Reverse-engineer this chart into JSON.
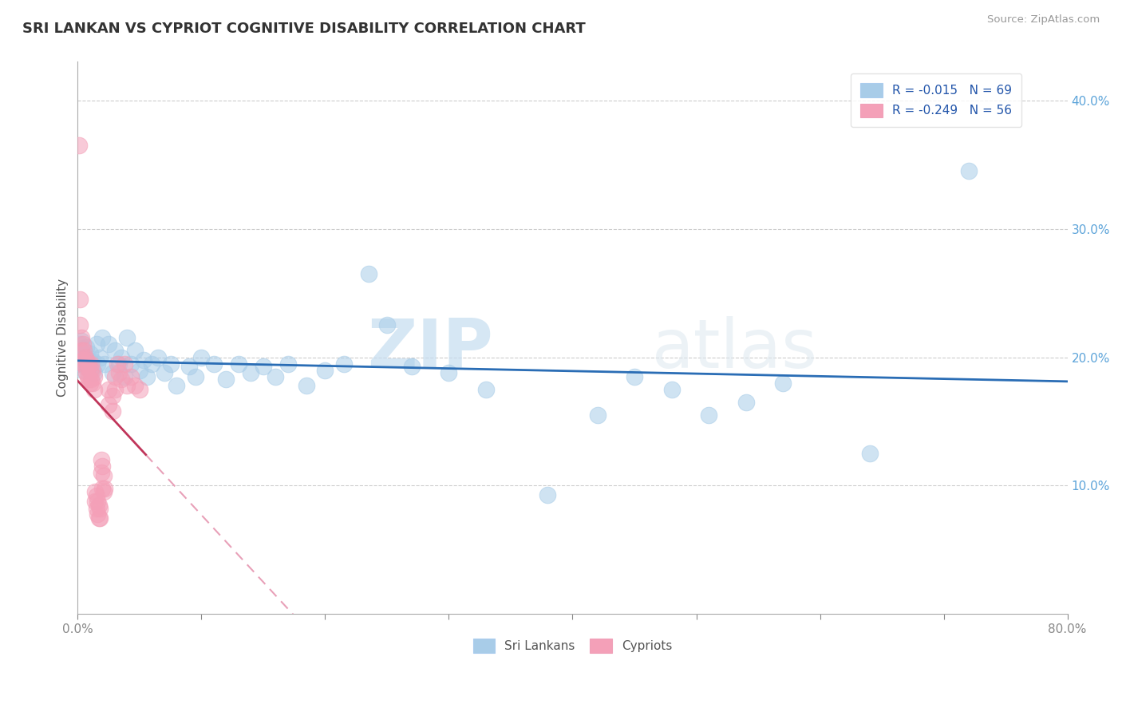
{
  "title": "SRI LANKAN VS CYPRIOT COGNITIVE DISABILITY CORRELATION CHART",
  "source": "Source: ZipAtlas.com",
  "ylabel": "Cognitive Disability",
  "legend_sri": "R = -0.015   N = 69",
  "legend_cyp": "R = -0.249   N = 56",
  "sri_color": "#a8cce8",
  "cyp_color": "#f4a0b8",
  "sri_line_color": "#2a6db5",
  "cyp_line_solid_color": "#c0355a",
  "cyp_line_dash_color": "#e8a0b8",
  "watermark_zip": "ZIP",
  "watermark_atlas": "atlas",
  "sri_points": [
    [
      0.0015,
      0.21
    ],
    [
      0.0018,
      0.205
    ],
    [
      0.0022,
      0.2
    ],
    [
      0.0025,
      0.198
    ],
    [
      0.0028,
      0.207
    ],
    [
      0.003,
      0.195
    ],
    [
      0.003,
      0.213
    ],
    [
      0.004,
      0.202
    ],
    [
      0.004,
      0.19
    ],
    [
      0.005,
      0.205
    ],
    [
      0.005,
      0.195
    ],
    [
      0.006,
      0.2
    ],
    [
      0.007,
      0.195
    ],
    [
      0.007,
      0.208
    ],
    [
      0.008,
      0.192
    ],
    [
      0.009,
      0.198
    ],
    [
      0.01,
      0.203
    ],
    [
      0.011,
      0.19
    ],
    [
      0.012,
      0.197
    ],
    [
      0.013,
      0.188
    ],
    [
      0.015,
      0.21
    ],
    [
      0.016,
      0.195
    ],
    [
      0.018,
      0.2
    ],
    [
      0.02,
      0.215
    ],
    [
      0.022,
      0.195
    ],
    [
      0.025,
      0.21
    ],
    [
      0.028,
      0.188
    ],
    [
      0.03,
      0.205
    ],
    [
      0.033,
      0.195
    ],
    [
      0.035,
      0.2
    ],
    [
      0.038,
      0.185
    ],
    [
      0.04,
      0.215
    ],
    [
      0.043,
      0.195
    ],
    [
      0.046,
      0.205
    ],
    [
      0.05,
      0.19
    ],
    [
      0.053,
      0.198
    ],
    [
      0.056,
      0.185
    ],
    [
      0.06,
      0.195
    ],
    [
      0.065,
      0.2
    ],
    [
      0.07,
      0.188
    ],
    [
      0.075,
      0.195
    ],
    [
      0.08,
      0.178
    ],
    [
      0.09,
      0.193
    ],
    [
      0.095,
      0.185
    ],
    [
      0.1,
      0.2
    ],
    [
      0.11,
      0.195
    ],
    [
      0.12,
      0.183
    ],
    [
      0.13,
      0.195
    ],
    [
      0.14,
      0.188
    ],
    [
      0.15,
      0.193
    ],
    [
      0.16,
      0.185
    ],
    [
      0.17,
      0.195
    ],
    [
      0.185,
      0.178
    ],
    [
      0.2,
      0.19
    ],
    [
      0.215,
      0.195
    ],
    [
      0.235,
      0.265
    ],
    [
      0.25,
      0.225
    ],
    [
      0.27,
      0.193
    ],
    [
      0.3,
      0.188
    ],
    [
      0.33,
      0.175
    ],
    [
      0.38,
      0.093
    ],
    [
      0.42,
      0.155
    ],
    [
      0.45,
      0.185
    ],
    [
      0.48,
      0.175
    ],
    [
      0.51,
      0.155
    ],
    [
      0.54,
      0.165
    ],
    [
      0.57,
      0.18
    ],
    [
      0.64,
      0.125
    ],
    [
      0.72,
      0.345
    ]
  ],
  "cyp_points": [
    [
      0.001,
      0.365
    ],
    [
      0.002,
      0.245
    ],
    [
      0.002,
      0.225
    ],
    [
      0.003,
      0.215
    ],
    [
      0.003,
      0.205
    ],
    [
      0.004,
      0.21
    ],
    [
      0.004,
      0.198
    ],
    [
      0.005,
      0.205
    ],
    [
      0.005,
      0.195
    ],
    [
      0.006,
      0.2
    ],
    [
      0.006,
      0.192
    ],
    [
      0.007,
      0.198
    ],
    [
      0.007,
      0.188
    ],
    [
      0.008,
      0.193
    ],
    [
      0.008,
      0.185
    ],
    [
      0.009,
      0.195
    ],
    [
      0.009,
      0.183
    ],
    [
      0.01,
      0.19
    ],
    [
      0.01,
      0.18
    ],
    [
      0.011,
      0.195
    ],
    [
      0.011,
      0.183
    ],
    [
      0.012,
      0.19
    ],
    [
      0.012,
      0.18
    ],
    [
      0.013,
      0.185
    ],
    [
      0.013,
      0.175
    ],
    [
      0.014,
      0.095
    ],
    [
      0.014,
      0.088
    ],
    [
      0.015,
      0.092
    ],
    [
      0.015,
      0.082
    ],
    [
      0.016,
      0.088
    ],
    [
      0.016,
      0.078
    ],
    [
      0.017,
      0.085
    ],
    [
      0.017,
      0.075
    ],
    [
      0.018,
      0.082
    ],
    [
      0.018,
      0.075
    ],
    [
      0.019,
      0.12
    ],
    [
      0.019,
      0.11
    ],
    [
      0.02,
      0.115
    ],
    [
      0.02,
      0.098
    ],
    [
      0.021,
      0.108
    ],
    [
      0.021,
      0.095
    ],
    [
      0.022,
      0.098
    ],
    [
      0.025,
      0.175
    ],
    [
      0.025,
      0.163
    ],
    [
      0.028,
      0.17
    ],
    [
      0.028,
      0.158
    ],
    [
      0.03,
      0.185
    ],
    [
      0.03,
      0.175
    ],
    [
      0.032,
      0.195
    ],
    [
      0.033,
      0.188
    ],
    [
      0.035,
      0.183
    ],
    [
      0.038,
      0.195
    ],
    [
      0.04,
      0.178
    ],
    [
      0.043,
      0.185
    ],
    [
      0.046,
      0.178
    ],
    [
      0.05,
      0.175
    ]
  ],
  "xlim": [
    0.0,
    0.8
  ],
  "ylim": [
    0.0,
    0.43
  ],
  "ytick_vals": [
    0.1,
    0.2,
    0.3,
    0.4
  ],
  "ytick_labels": [
    "10.0%",
    "20.0%",
    "30.0%",
    "40.0%"
  ],
  "xtick_vals": [
    0.0,
    0.8
  ],
  "xtick_labels": [
    "0.0%",
    "80.0%"
  ]
}
